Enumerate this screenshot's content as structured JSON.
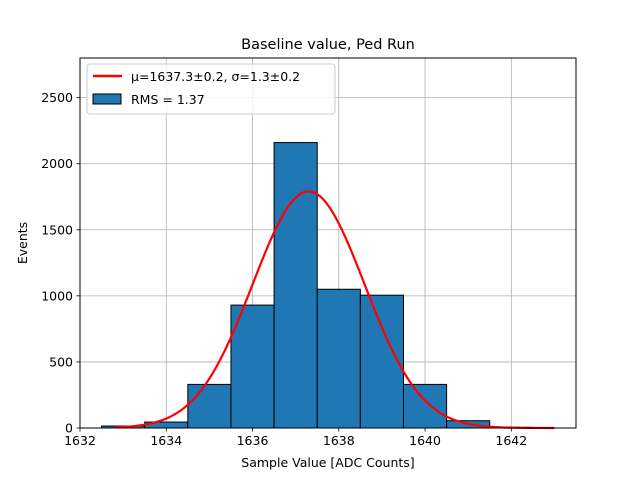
{
  "chart_data": {
    "type": "bar",
    "title": "Baseline value, Ped Run",
    "xlabel": "Sample Value [ADC Counts]",
    "ylabel": "Events",
    "xlim": [
      1632,
      1643.5
    ],
    "ylim": [
      0,
      2800
    ],
    "xticks": [
      1632,
      1634,
      1636,
      1638,
      1640,
      1642
    ],
    "yticks": [
      0,
      500,
      1000,
      1500,
      2000,
      2500
    ],
    "grid": true,
    "legend_position": "top-left",
    "histogram": {
      "name": "RMS = 1.37",
      "color": "#1f77b4",
      "edge_color": "#000000",
      "bins": [
        {
          "x0": 1632.5,
          "x1": 1633.5,
          "count": 15
        },
        {
          "x0": 1633.5,
          "x1": 1634.5,
          "count": 45
        },
        {
          "x0": 1634.5,
          "x1": 1635.5,
          "count": 330
        },
        {
          "x0": 1635.5,
          "x1": 1636.5,
          "count": 930
        },
        {
          "x0": 1636.5,
          "x1": 1637.5,
          "count": 2160
        },
        {
          "x0": 1637.5,
          "x1": 1638.5,
          "count": 1050
        },
        {
          "x0": 1638.5,
          "x1": 1639.5,
          "count": 1005
        },
        {
          "x0": 1639.5,
          "x1": 1640.5,
          "count": 330
        },
        {
          "x0": 1640.5,
          "x1": 1641.5,
          "count": 55
        },
        {
          "x0": 1641.5,
          "x1": 1642.5,
          "count": 5
        }
      ]
    },
    "fit": {
      "name": "μ=1637.3±0.2, σ=1.3±0.2",
      "color": "#ff0000",
      "function": "gaussian",
      "mu": 1637.3,
      "sigma": 1.3,
      "amplitude": 1790,
      "x_range": [
        1632.8,
        1643.0
      ]
    }
  }
}
